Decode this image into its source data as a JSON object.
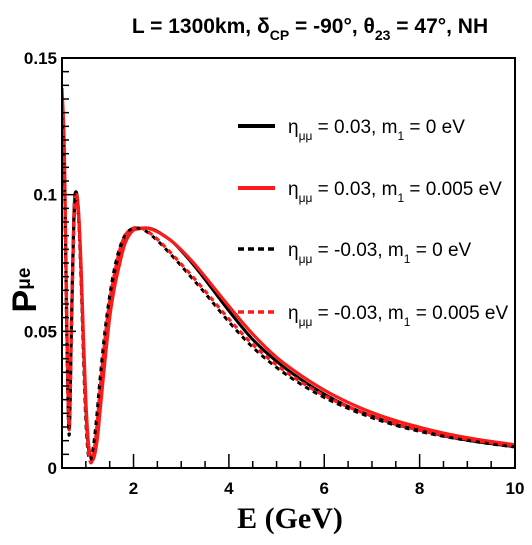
{
  "chart_data": {
    "type": "line",
    "title": {
      "prefix": "L = 1300km, ",
      "delta": "δ",
      "delta_sub": "CP",
      "mid": " = -90°, ",
      "theta": "θ",
      "theta_sub": "23",
      "suffix": " = 47°, NH"
    },
    "xlabel": "E (GeV)",
    "ylabel": {
      "main": "P",
      "sub": "μe"
    },
    "xlim": [
      0.5,
      10
    ],
    "ylim": [
      0,
      0.15
    ],
    "x_ticks": [
      2,
      4,
      6,
      8,
      10
    ],
    "y_ticks": [
      0,
      0.05,
      0.1,
      0.15
    ],
    "y_tick_labels": [
      "0",
      "0.05",
      "0.1",
      "0.15"
    ],
    "grid": false,
    "legend_position": "top-right",
    "series": [
      {
        "label": {
          "eta": "η",
          "eta_sub": "μμ",
          "eq": " = 0.03, m",
          "m_sub": "1",
          "val": " = 0 eV"
        },
        "color": "#000000",
        "dash": "solid",
        "x": [
          0.5,
          0.55,
          0.6,
          0.65,
          0.7,
          0.75,
          0.8,
          0.85,
          0.9,
          0.95,
          1.0,
          1.05,
          1.1,
          1.15,
          1.2,
          1.25,
          1.3,
          1.4,
          1.5,
          1.6,
          1.7,
          1.8,
          1.9,
          2.0,
          2.1,
          2.2,
          2.3,
          2.4,
          2.5,
          2.6,
          2.8,
          3.0,
          3.25,
          3.5,
          4.0,
          4.5,
          5.0,
          5.5,
          6.0,
          6.5,
          7.0,
          7.5,
          8.0,
          8.5,
          9.0,
          9.5,
          10.0
        ],
        "y": [
          0.133,
          0.112,
          0.052,
          0.014,
          0.055,
          0.094,
          0.101,
          0.093,
          0.072,
          0.045,
          0.022,
          0.008,
          0.004,
          0.004,
          0.008,
          0.015,
          0.024,
          0.042,
          0.058,
          0.068,
          0.076,
          0.082,
          0.085,
          0.087,
          0.0875,
          0.0878,
          0.0878,
          0.0874,
          0.0866,
          0.0855,
          0.083,
          0.0795,
          0.0745,
          0.069,
          0.0575,
          0.047,
          0.039,
          0.0325,
          0.027,
          0.0225,
          0.019,
          0.016,
          0.0138,
          0.0118,
          0.0102,
          0.0089,
          0.0078
        ]
      },
      {
        "label": {
          "eta": "η",
          "eta_sub": "μμ",
          "eq": " = 0.03, m",
          "m_sub": "1",
          "val": " = 0.005 eV"
        },
        "color": "#ff1a1a",
        "dash": "solid",
        "x": [
          0.5,
          0.55,
          0.6,
          0.65,
          0.7,
          0.75,
          0.8,
          0.85,
          0.9,
          0.95,
          1.0,
          1.05,
          1.1,
          1.15,
          1.2,
          1.25,
          1.3,
          1.4,
          1.5,
          1.6,
          1.7,
          1.8,
          1.9,
          2.0,
          2.1,
          2.2,
          2.3,
          2.4,
          2.5,
          2.6,
          2.8,
          3.0,
          3.25,
          3.5,
          4.0,
          4.5,
          5.0,
          5.5,
          6.0,
          6.5,
          7.0,
          7.5,
          8.0,
          8.5,
          9.0,
          9.5,
          10.0
        ],
        "y": [
          0.139,
          0.116,
          0.055,
          0.016,
          0.054,
          0.092,
          0.1,
          0.093,
          0.074,
          0.048,
          0.025,
          0.01,
          0.004,
          0.003,
          0.006,
          0.012,
          0.021,
          0.039,
          0.055,
          0.066,
          0.074,
          0.081,
          0.085,
          0.087,
          0.0875,
          0.0878,
          0.0877,
          0.0872,
          0.0864,
          0.0854,
          0.083,
          0.0798,
          0.0752,
          0.07,
          0.0592,
          0.049,
          0.0405,
          0.034,
          0.0285,
          0.024,
          0.0203,
          0.0173,
          0.0149,
          0.0128,
          0.0111,
          0.0097,
          0.0085
        ]
      },
      {
        "label": {
          "eta": "η",
          "eta_sub": "μμ",
          "eq": " = -0.03, m",
          "m_sub": "1",
          "val": " = 0 eV"
        },
        "color": "#000000",
        "dash": "dashed",
        "x": [
          0.5,
          0.55,
          0.6,
          0.65,
          0.7,
          0.75,
          0.8,
          0.85,
          0.9,
          0.95,
          1.0,
          1.05,
          1.1,
          1.15,
          1.2,
          1.25,
          1.3,
          1.4,
          1.5,
          1.6,
          1.7,
          1.8,
          1.9,
          2.0,
          2.1,
          2.2,
          2.3,
          2.4,
          2.5,
          2.6,
          2.8,
          3.0,
          3.25,
          3.5,
          4.0,
          4.5,
          5.0,
          5.5,
          6.0,
          6.5,
          7.0,
          7.5,
          8.0,
          8.5,
          9.0,
          9.5,
          10.0
        ],
        "y": [
          0.128,
          0.108,
          0.048,
          0.012,
          0.052,
          0.09,
          0.099,
          0.09,
          0.068,
          0.04,
          0.017,
          0.005,
          0.003,
          0.007,
          0.014,
          0.023,
          0.033,
          0.05,
          0.063,
          0.073,
          0.08,
          0.0845,
          0.0868,
          0.0877,
          0.0878,
          0.0872,
          0.0862,
          0.0848,
          0.0832,
          0.0815,
          0.0778,
          0.074,
          0.069,
          0.064,
          0.0535,
          0.0442,
          0.0368,
          0.0308,
          0.0258,
          0.0218,
          0.0184,
          0.0156,
          0.0134,
          0.0116,
          0.0101,
          0.0088,
          0.0077
        ]
      },
      {
        "label": {
          "eta": "η",
          "eta_sub": "μμ",
          "eq": " = -0.03, m",
          "m_sub": "1",
          "val": " = 0.005 eV"
        },
        "color": "#ff1a1a",
        "dash": "dashed",
        "x": [
          0.5,
          0.55,
          0.6,
          0.65,
          0.7,
          0.75,
          0.8,
          0.85,
          0.9,
          0.95,
          1.0,
          1.05,
          1.1,
          1.15,
          1.2,
          1.25,
          1.3,
          1.4,
          1.5,
          1.6,
          1.7,
          1.8,
          1.9,
          2.0,
          2.1,
          2.2,
          2.3,
          2.4,
          2.5,
          2.6,
          2.8,
          3.0,
          3.25,
          3.5,
          4.0,
          4.5,
          5.0,
          5.5,
          6.0,
          6.5,
          7.0,
          7.5,
          8.0,
          8.5,
          9.0,
          9.5,
          10.0
        ],
        "y": [
          0.134,
          0.112,
          0.052,
          0.014,
          0.051,
          0.088,
          0.098,
          0.091,
          0.07,
          0.044,
          0.021,
          0.007,
          0.002,
          0.004,
          0.01,
          0.019,
          0.029,
          0.047,
          0.061,
          0.071,
          0.079,
          0.0843,
          0.0868,
          0.0878,
          0.088,
          0.0875,
          0.0865,
          0.0852,
          0.0837,
          0.082,
          0.0784,
          0.0746,
          0.0698,
          0.0648,
          0.0545,
          0.0452,
          0.0377,
          0.0316,
          0.0265,
          0.0224,
          0.019,
          0.0162,
          0.0139,
          0.012,
          0.0105,
          0.0092,
          0.0081
        ]
      }
    ]
  }
}
